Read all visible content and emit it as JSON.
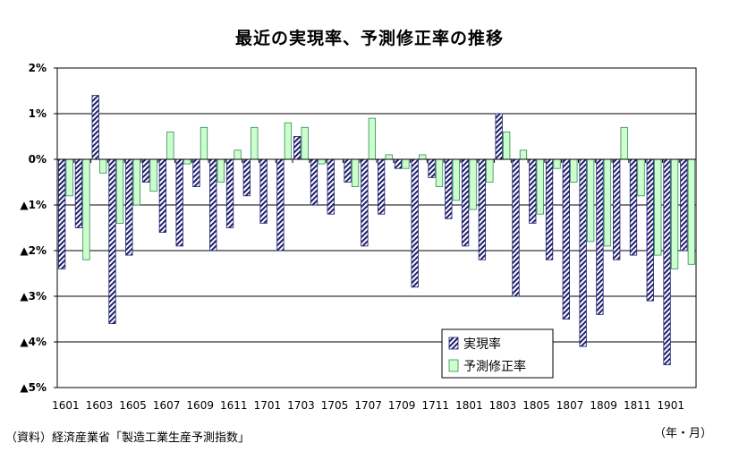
{
  "chart_data": {
    "type": "bar",
    "title": "最近の実現率、予測修正率の推移",
    "ylim": [
      -5,
      2
    ],
    "y_ticks": [
      {
        "value": 2,
        "label": "2%"
      },
      {
        "value": 1,
        "label": "1%"
      },
      {
        "value": 0,
        "label": "0%"
      },
      {
        "value": -1,
        "label": "▲1%"
      },
      {
        "value": -2,
        "label": "▲2%"
      },
      {
        "value": -3,
        "label": "▲3%"
      },
      {
        "value": -4,
        "label": "▲4%"
      },
      {
        "value": -5,
        "label": "▲5%"
      }
    ],
    "categories": [
      "1601",
      "1602",
      "1603",
      "1604",
      "1605",
      "1606",
      "1607",
      "1608",
      "1609",
      "1610",
      "1611",
      "1612",
      "1701",
      "1702",
      "1703",
      "1704",
      "1705",
      "1706",
      "1707",
      "1708",
      "1709",
      "1710",
      "1711",
      "1712",
      "1801",
      "1802",
      "1803",
      "1804",
      "1805",
      "1806",
      "1807",
      "1808",
      "1809",
      "1810",
      "1811",
      "1812",
      "1901",
      "1902"
    ],
    "x_tick_labels": [
      "1601",
      "1603",
      "1605",
      "1607",
      "1609",
      "1611",
      "1701",
      "1703",
      "1705",
      "1707",
      "1709",
      "1711",
      "1801",
      "1803",
      "1805",
      "1807",
      "1809",
      "1811",
      "1901"
    ],
    "series": [
      {
        "name": "実現率",
        "values": [
          -2.4,
          -1.5,
          1.4,
          -3.6,
          -2.1,
          -0.5,
          -1.6,
          -1.9,
          -0.6,
          -2.0,
          -1.5,
          -0.8,
          -1.4,
          -2.0,
          0.5,
          -1.0,
          -1.2,
          -0.5,
          -1.9,
          -1.2,
          -0.2,
          -2.8,
          -0.4,
          -1.3,
          -1.9,
          -2.2,
          1.0,
          -3.0,
          -1.4,
          -2.2,
          -3.5,
          -4.1,
          -3.4,
          -2.2,
          -2.1,
          -3.1,
          -4.5,
          -2.0
        ]
      },
      {
        "name": "予測修正率",
        "values": [
          -0.8,
          -2.2,
          -0.3,
          -1.4,
          -1.0,
          -0.7,
          0.6,
          -0.1,
          0.7,
          -0.5,
          0.2,
          0.7,
          null,
          0.8,
          0.7,
          -0.1,
          null,
          -0.6,
          0.9,
          0.1,
          -0.2,
          0.1,
          -0.6,
          -0.9,
          -1.1,
          -0.5,
          0.6,
          0.2,
          -1.2,
          -0.2,
          -0.5,
          -1.8,
          -1.9,
          0.7,
          -0.8,
          -2.1,
          -2.4,
          -2.3
        ]
      }
    ],
    "legend_position": "bottom-right",
    "grid": true,
    "colors": {
      "series1": "#1f1f6e",
      "series2_fill": "#ccffcc",
      "series2_stroke": "#2e8b57",
      "grid": "#000000"
    }
  },
  "notes": {
    "source": "（資料）経済産業省「製造工業生産予測指数」",
    "unit": "（年・月）"
  }
}
